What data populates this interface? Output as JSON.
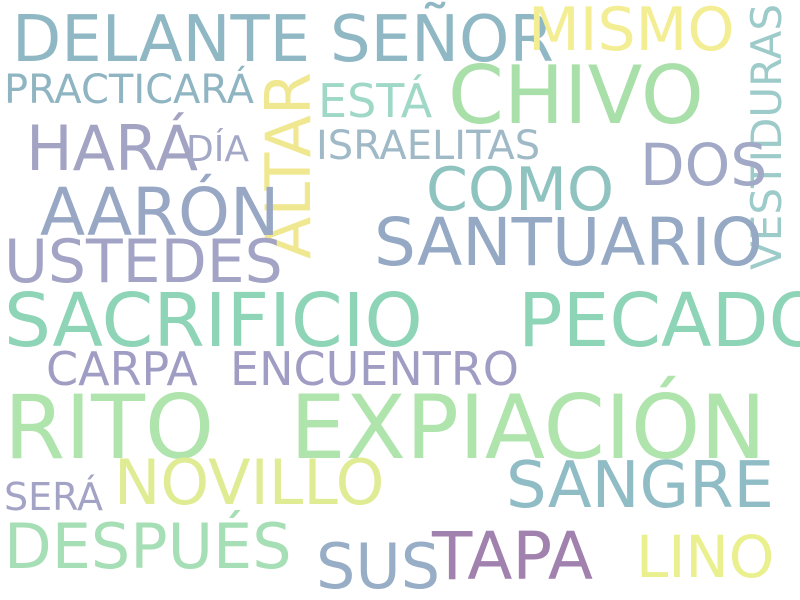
{
  "words": [
    {
      "id": "delante",
      "text": "DELANTE",
      "color": "#8fb8c4"
    },
    {
      "id": "senor",
      "text": "SEÑOR",
      "color": "#8fb8c4"
    },
    {
      "id": "mismo",
      "text": "MISMO",
      "color": "#f3ee94"
    },
    {
      "id": "vestiduras",
      "text": "VESTIDURAS",
      "color": "#9ccbc9",
      "orientation": "vertical"
    },
    {
      "id": "chivo",
      "text": "CHIVO",
      "color": "#a9dfa8"
    },
    {
      "id": "practicara",
      "text": "PRACTICARÁ",
      "color": "#8fb4c2"
    },
    {
      "id": "altar",
      "text": "ALTAR",
      "color": "#f0e890",
      "orientation": "vertical"
    },
    {
      "id": "esta",
      "text": "ESTÁ",
      "color": "#9fd8c6"
    },
    {
      "id": "hara",
      "text": "HARÁ",
      "color": "#a3a3c4"
    },
    {
      "id": "dia",
      "text": "DÍA",
      "color": "#a3a8c7"
    },
    {
      "id": "israelitas",
      "text": "ISRAELITAS",
      "color": "#9fb9c6"
    },
    {
      "id": "dos",
      "text": "DOS",
      "color": "#a1a9c6"
    },
    {
      "id": "como",
      "text": "COMO",
      "color": "#8fc3c0"
    },
    {
      "id": "aaron",
      "text": "AARÓN",
      "color": "#97a7c4"
    },
    {
      "id": "santuario",
      "text": "SANTUARIO",
      "color": "#95a9c4"
    },
    {
      "id": "ustedes",
      "text": "USTEDES",
      "color": "#a3a4c5"
    },
    {
      "id": "sacrificio",
      "text": "SACRIFICIO",
      "color": "#8ed4b7"
    },
    {
      "id": "pecado",
      "text": "PECADO",
      "color": "#8ed4b7"
    },
    {
      "id": "carpa",
      "text": "CARPA",
      "color": "#a09dc4"
    },
    {
      "id": "encuentro",
      "text": "ENCUENTRO",
      "color": "#a09dc4"
    },
    {
      "id": "rito",
      "text": "RITO",
      "color": "#afe4ac"
    },
    {
      "id": "expiacion",
      "text": "EXPIACIÓN",
      "color": "#afe4ac"
    },
    {
      "id": "novillo",
      "text": "NOVILLO",
      "color": "#e0ec94"
    },
    {
      "id": "sangre",
      "text": "SANGRE",
      "color": "#90bcc6"
    },
    {
      "id": "sera",
      "text": "SERÁ",
      "color": "#a3a3c5"
    },
    {
      "id": "despues",
      "text": "DESPUÉS",
      "color": "#a6dfb5"
    },
    {
      "id": "sus",
      "text": "SUS",
      "color": "#98adc6"
    },
    {
      "id": "tapa",
      "text": "TAPA",
      "color": "#a181ad"
    },
    {
      "id": "lino",
      "text": "LINO",
      "color": "#eaf08e"
    }
  ]
}
